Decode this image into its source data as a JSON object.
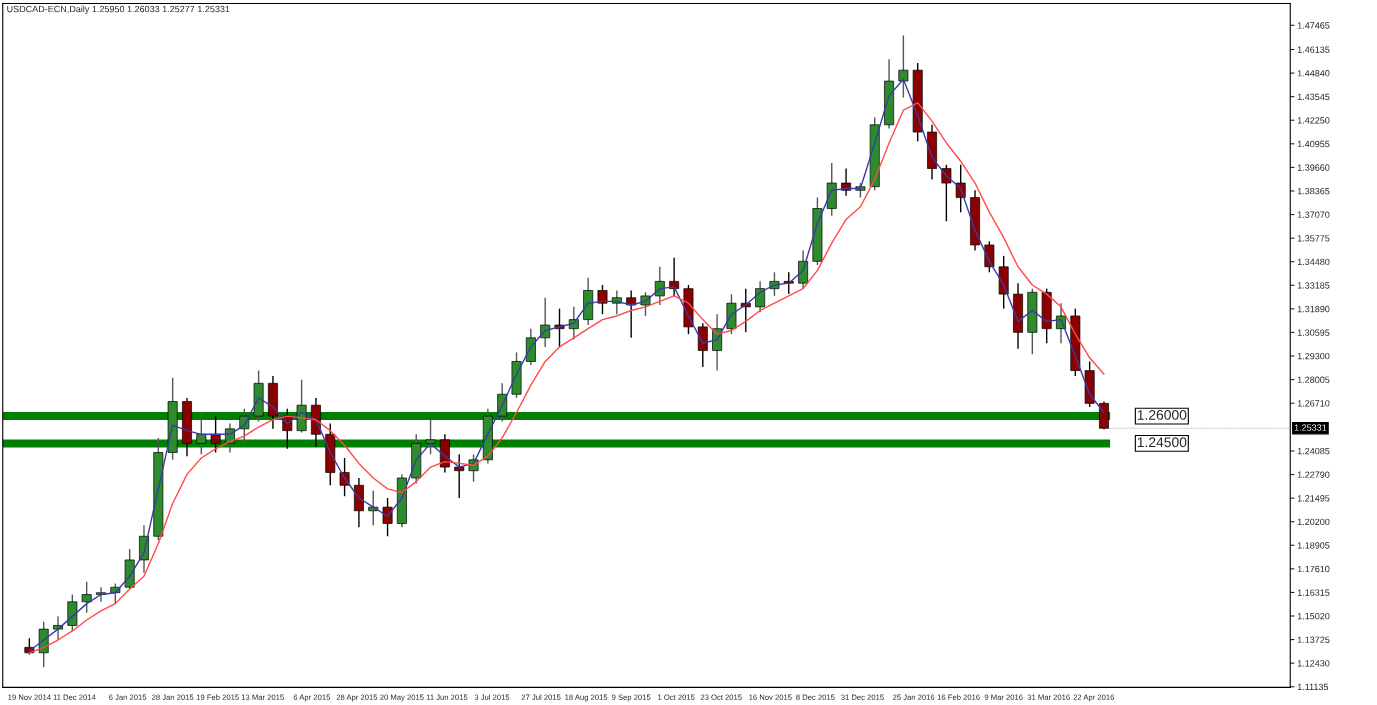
{
  "chart_data": {
    "type": "candlestick",
    "title": "USDCAD-ECN,Daily 1.25950 1.26033 1.25277 1.25331",
    "x": [
      "2014-11-19",
      "2014-11-26",
      "2014-12-03",
      "2014-12-10",
      "2014-12-17",
      "2014-12-24",
      "2014-12-31",
      "2015-01-07",
      "2015-01-14",
      "2015-01-21",
      "2015-01-28",
      "2015-02-04",
      "2015-02-11",
      "2015-02-18",
      "2015-02-25",
      "2015-03-04",
      "2015-03-11",
      "2015-03-18",
      "2015-03-25",
      "2015-04-01",
      "2015-04-08",
      "2015-04-15",
      "2015-04-22",
      "2015-04-29",
      "2015-05-06",
      "2015-05-13",
      "2015-05-20",
      "2015-05-27",
      "2015-06-03",
      "2015-06-10",
      "2015-06-17",
      "2015-06-24",
      "2015-07-01",
      "2015-07-08",
      "2015-07-15",
      "2015-07-22",
      "2015-07-29",
      "2015-08-05",
      "2015-08-12",
      "2015-08-19",
      "2015-08-26",
      "2015-09-02",
      "2015-09-09",
      "2015-09-16",
      "2015-09-23",
      "2015-09-30",
      "2015-10-07",
      "2015-10-14",
      "2015-10-21",
      "2015-10-28",
      "2015-11-04",
      "2015-11-11",
      "2015-11-18",
      "2015-11-25",
      "2015-12-02",
      "2015-12-09",
      "2015-12-16",
      "2015-12-23",
      "2015-12-30",
      "2016-01-06",
      "2016-01-13",
      "2016-01-20",
      "2016-01-27",
      "2016-02-03",
      "2016-02-10",
      "2016-02-17",
      "2016-02-24",
      "2016-03-02",
      "2016-03-09",
      "2016-03-16",
      "2016-03-23",
      "2016-03-30",
      "2016-04-06",
      "2016-04-13",
      "2016-04-20",
      "2016-04-27"
    ],
    "ohlc": [
      [
        1.133,
        1.138,
        1.129,
        1.13
      ],
      [
        1.13,
        1.147,
        1.122,
        1.143
      ],
      [
        1.143,
        1.15,
        1.137,
        1.145
      ],
      [
        1.145,
        1.162,
        1.142,
        1.158
      ],
      [
        1.158,
        1.169,
        1.152,
        1.162
      ],
      [
        1.162,
        1.166,
        1.158,
        1.163
      ],
      [
        1.163,
        1.168,
        1.157,
        1.166
      ],
      [
        1.166,
        1.187,
        1.165,
        1.181
      ],
      [
        1.181,
        1.2,
        1.174,
        1.194
      ],
      [
        1.194,
        1.248,
        1.192,
        1.24
      ],
      [
        1.24,
        1.281,
        1.236,
        1.268
      ],
      [
        1.268,
        1.27,
        1.238,
        1.245
      ],
      [
        1.245,
        1.262,
        1.239,
        1.25
      ],
      [
        1.25,
        1.26,
        1.24,
        1.245
      ],
      [
        1.245,
        1.256,
        1.24,
        1.253
      ],
      [
        1.253,
        1.264,
        1.245,
        1.26
      ],
      [
        1.26,
        1.285,
        1.257,
        1.278
      ],
      [
        1.278,
        1.282,
        1.253,
        1.26
      ],
      [
        1.26,
        1.264,
        1.242,
        1.252
      ],
      [
        1.252,
        1.28,
        1.251,
        1.266
      ],
      [
        1.266,
        1.27,
        1.243,
        1.25
      ],
      [
        1.25,
        1.256,
        1.222,
        1.229
      ],
      [
        1.229,
        1.237,
        1.216,
        1.222
      ],
      [
        1.222,
        1.226,
        1.199,
        1.208
      ],
      [
        1.208,
        1.219,
        1.2,
        1.21
      ],
      [
        1.21,
        1.215,
        1.194,
        1.201
      ],
      [
        1.201,
        1.228,
        1.199,
        1.226
      ],
      [
        1.226,
        1.25,
        1.223,
        1.245
      ],
      [
        1.245,
        1.258,
        1.239,
        1.247
      ],
      [
        1.247,
        1.25,
        1.229,
        1.232
      ],
      [
        1.232,
        1.239,
        1.215,
        1.23
      ],
      [
        1.23,
        1.239,
        1.224,
        1.236
      ],
      [
        1.236,
        1.264,
        1.234,
        1.26
      ],
      [
        1.26,
        1.278,
        1.257,
        1.272
      ],
      [
        1.272,
        1.295,
        1.27,
        1.29
      ],
      [
        1.29,
        1.308,
        1.288,
        1.303
      ],
      [
        1.303,
        1.325,
        1.298,
        1.31
      ],
      [
        1.31,
        1.319,
        1.298,
        1.308
      ],
      [
        1.308,
        1.32,
        1.302,
        1.313
      ],
      [
        1.313,
        1.336,
        1.31,
        1.329
      ],
      [
        1.329,
        1.332,
        1.316,
        1.322
      ],
      [
        1.322,
        1.329,
        1.316,
        1.325
      ],
      [
        1.325,
        1.329,
        1.303,
        1.321
      ],
      [
        1.321,
        1.328,
        1.315,
        1.326
      ],
      [
        1.326,
        1.342,
        1.321,
        1.334
      ],
      [
        1.334,
        1.347,
        1.326,
        1.33
      ],
      [
        1.33,
        1.332,
        1.305,
        1.309
      ],
      [
        1.309,
        1.311,
        1.287,
        1.296
      ],
      [
        1.296,
        1.316,
        1.285,
        1.308
      ],
      [
        1.308,
        1.327,
        1.305,
        1.322
      ],
      [
        1.322,
        1.33,
        1.306,
        1.32
      ],
      [
        1.32,
        1.334,
        1.317,
        1.33
      ],
      [
        1.33,
        1.339,
        1.326,
        1.334
      ],
      [
        1.334,
        1.339,
        1.327,
        1.333
      ],
      [
        1.333,
        1.351,
        1.33,
        1.345
      ],
      [
        1.345,
        1.38,
        1.343,
        1.374
      ],
      [
        1.374,
        1.399,
        1.37,
        1.388
      ],
      [
        1.388,
        1.396,
        1.381,
        1.384
      ],
      [
        1.384,
        1.388,
        1.38,
        1.386
      ],
      [
        1.386,
        1.424,
        1.384,
        1.42
      ],
      [
        1.42,
        1.456,
        1.418,
        1.444
      ],
      [
        1.444,
        1.469,
        1.435,
        1.45
      ],
      [
        1.45,
        1.454,
        1.411,
        1.416
      ],
      [
        1.416,
        1.42,
        1.39,
        1.396
      ],
      [
        1.396,
        1.398,
        1.367,
        1.388
      ],
      [
        1.388,
        1.398,
        1.372,
        1.38
      ],
      [
        1.38,
        1.384,
        1.351,
        1.354
      ],
      [
        1.354,
        1.356,
        1.339,
        1.342
      ],
      [
        1.342,
        1.348,
        1.319,
        1.327
      ],
      [
        1.327,
        1.333,
        1.297,
        1.306
      ],
      [
        1.306,
        1.33,
        1.294,
        1.328
      ],
      [
        1.328,
        1.33,
        1.3,
        1.308
      ],
      [
        1.308,
        1.322,
        1.3,
        1.315
      ],
      [
        1.315,
        1.319,
        1.282,
        1.285
      ],
      [
        1.285,
        1.29,
        1.265,
        1.267
      ],
      [
        1.267,
        1.268,
        1.2528,
        1.2533
      ]
    ],
    "series": [
      {
        "type": "line",
        "color": "#3a3aa8",
        "values": [
          1.131,
          1.137,
          1.143,
          1.15,
          1.157,
          1.162,
          1.163,
          1.172,
          1.185,
          1.22,
          1.255,
          1.252,
          1.25,
          1.25,
          1.25,
          1.255,
          1.27,
          1.265,
          1.256,
          1.262,
          1.258,
          1.24,
          1.226,
          1.215,
          1.21,
          1.205,
          1.215,
          1.236,
          1.245,
          1.238,
          1.232,
          1.234,
          1.25,
          1.266,
          1.283,
          1.298,
          1.307,
          1.309,
          1.311,
          1.322,
          1.323,
          1.323,
          1.321,
          1.323,
          1.33,
          1.331,
          1.315,
          1.3,
          1.302,
          1.316,
          1.321,
          1.328,
          1.332,
          1.333,
          1.34,
          1.366,
          1.384,
          1.385,
          1.385,
          1.41,
          1.436,
          1.445,
          1.425,
          1.402,
          1.392,
          1.385,
          1.362,
          1.345,
          1.332,
          1.312,
          1.318,
          1.312,
          1.313,
          1.293,
          1.272,
          1.262
        ]
      },
      {
        "type": "line",
        "color": "#ff4a4a",
        "values": [
          1.13,
          1.133,
          1.137,
          1.142,
          1.148,
          1.153,
          1.157,
          1.165,
          1.172,
          1.19,
          1.212,
          1.228,
          1.237,
          1.242,
          1.246,
          1.249,
          1.254,
          1.258,
          1.26,
          1.259,
          1.258,
          1.252,
          1.244,
          1.234,
          1.226,
          1.22,
          1.218,
          1.224,
          1.232,
          1.235,
          1.234,
          1.233,
          1.238,
          1.248,
          1.262,
          1.277,
          1.29,
          1.298,
          1.303,
          1.308,
          1.313,
          1.315,
          1.318,
          1.32,
          1.323,
          1.326,
          1.322,
          1.313,
          1.305,
          1.307,
          1.312,
          1.318,
          1.322,
          1.326,
          1.33,
          1.34,
          1.355,
          1.368,
          1.375,
          1.39,
          1.41,
          1.428,
          1.432,
          1.422,
          1.41,
          1.4,
          1.388,
          1.372,
          1.358,
          1.342,
          1.332,
          1.327,
          1.32,
          1.305,
          1.292,
          1.283
        ]
      }
    ],
    "xlim": [
      "2014-11-06",
      "2016-07-27"
    ],
    "xticks": [
      {
        "value": "2014-11-19",
        "label": "19 Nov 2014"
      },
      {
        "value": "2014-12-11",
        "label": "11 Dec 2014"
      },
      {
        "value": "2015-01-06",
        "label": "6 Jan 2015"
      },
      {
        "value": "2015-01-28",
        "label": "28 Jan 2015"
      },
      {
        "value": "2015-02-19",
        "label": "19 Feb 2015"
      },
      {
        "value": "2015-03-13",
        "label": "13 Mar 2015"
      },
      {
        "value": "2015-04-06",
        "label": "6 Apr 2015"
      },
      {
        "value": "2015-04-28",
        "label": "28 Apr 2015"
      },
      {
        "value": "2015-05-20",
        "label": "20 May 2015"
      },
      {
        "value": "2015-06-11",
        "label": "11 Jun 2015"
      },
      {
        "value": "2015-07-03",
        "label": "3 Jul 2015"
      },
      {
        "value": "2015-07-27",
        "label": "27 Jul 2015"
      },
      {
        "value": "2015-08-18",
        "label": "18 Aug 2015"
      },
      {
        "value": "2015-09-09",
        "label": "9 Sep 2015"
      },
      {
        "value": "2015-10-01",
        "label": "1 Oct 2015"
      },
      {
        "value": "2015-10-23",
        "label": "23 Oct 2015"
      },
      {
        "value": "2015-11-16",
        "label": "16 Nov 2015"
      },
      {
        "value": "2015-12-08",
        "label": "8 Dec 2015"
      },
      {
        "value": "2015-12-31",
        "label": "31 Dec 2015"
      },
      {
        "value": "2016-01-25",
        "label": "25 Jan 2016"
      },
      {
        "value": "2016-02-16",
        "label": "16 Feb 2016"
      },
      {
        "value": "2016-03-09",
        "label": "9 Mar 2016"
      },
      {
        "value": "2016-03-31",
        "label": "31 Mar 2016"
      },
      {
        "value": "2016-04-22",
        "label": "22 Apr 2016"
      }
    ],
    "ylim": [
      1.111,
      1.4866
    ],
    "yticks": [
      {
        "value": 1.47465,
        "label": "1.47465"
      },
      {
        "value": 1.46135,
        "label": "1.46135"
      },
      {
        "value": 1.4484,
        "label": "1.44840"
      },
      {
        "value": 1.43545,
        "label": "1.43545"
      },
      {
        "value": 1.4225,
        "label": "1.42250"
      },
      {
        "value": 1.40955,
        "label": "1.40955"
      },
      {
        "value": 1.3966,
        "label": "1.39660"
      },
      {
        "value": 1.38365,
        "label": "1.38365"
      },
      {
        "value": 1.3707,
        "label": "1.37070"
      },
      {
        "value": 1.35775,
        "label": "1.35775"
      },
      {
        "value": 1.3448,
        "label": "1.34480"
      },
      {
        "value": 1.33185,
        "label": "1.33185"
      },
      {
        "value": 1.3189,
        "label": "1.31890"
      },
      {
        "value": 1.30595,
        "label": "1.30595"
      },
      {
        "value": 1.293,
        "label": "1.29300"
      },
      {
        "value": 1.28005,
        "label": "1.28005"
      },
      {
        "value": 1.2671,
        "label": "1.26710"
      },
      {
        "value": 1.24085,
        "label": "1.24085"
      },
      {
        "value": 1.2279,
        "label": "1.22790"
      },
      {
        "value": 1.21495,
        "label": "1.21495"
      },
      {
        "value": 1.202,
        "label": "1.20200"
      },
      {
        "value": 1.18905,
        "label": "1.18905"
      },
      {
        "value": 1.1761,
        "label": "1.17610"
      },
      {
        "value": 1.16315,
        "label": "1.16315"
      },
      {
        "value": 1.1502,
        "label": "1.15020"
      },
      {
        "value": 1.13725,
        "label": "1.13725"
      },
      {
        "value": 1.1243,
        "label": "1.12430"
      },
      {
        "value": 1.11135,
        "label": "1.11135"
      }
    ],
    "bands": [
      {
        "axis": "y",
        "from": 1.2578,
        "to": 1.2622,
        "label": "1.26000",
        "color": "#008000"
      },
      {
        "axis": "y",
        "from": 1.2428,
        "to": 1.2472,
        "label": "1.24500",
        "color": "#008000"
      }
    ],
    "annotations": [
      {
        "text": "1.25331",
        "x": "2016-04-27",
        "y": 1.25331
      }
    ],
    "grid": false,
    "legend": false
  }
}
